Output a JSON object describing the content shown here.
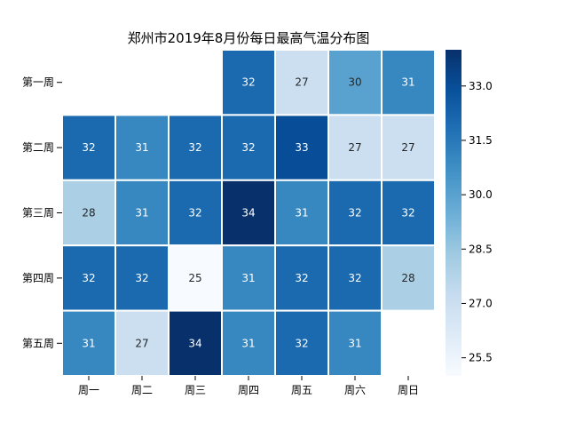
{
  "chart_data": {
    "type": "heatmap",
    "title": "郑州市2019年8月份每日最高气温分布图",
    "xlabel": "",
    "ylabel": "",
    "columns": [
      "周一",
      "周二",
      "周三",
      "周四",
      "周五",
      "周六",
      "周日"
    ],
    "rows": [
      "第一周",
      "第二周",
      "第三周",
      "第四周",
      "第五周"
    ],
    "values": [
      [
        null,
        null,
        null,
        32,
        27,
        30,
        31
      ],
      [
        32,
        31,
        32,
        32,
        33,
        27,
        27
      ],
      [
        28,
        31,
        32,
        34,
        31,
        32,
        32
      ],
      [
        32,
        32,
        25,
        31,
        32,
        32,
        28
      ],
      [
        31,
        27,
        34,
        31,
        32,
        31,
        null
      ]
    ],
    "colormap": "Blues",
    "colorbar": {
      "range": [
        25,
        34
      ],
      "ticks": [
        "25.5",
        "27.0",
        "28.5",
        "30.0",
        "31.5",
        "33.0"
      ],
      "placement": "right"
    },
    "grid": false,
    "cell_border_color": "#ffffff"
  }
}
